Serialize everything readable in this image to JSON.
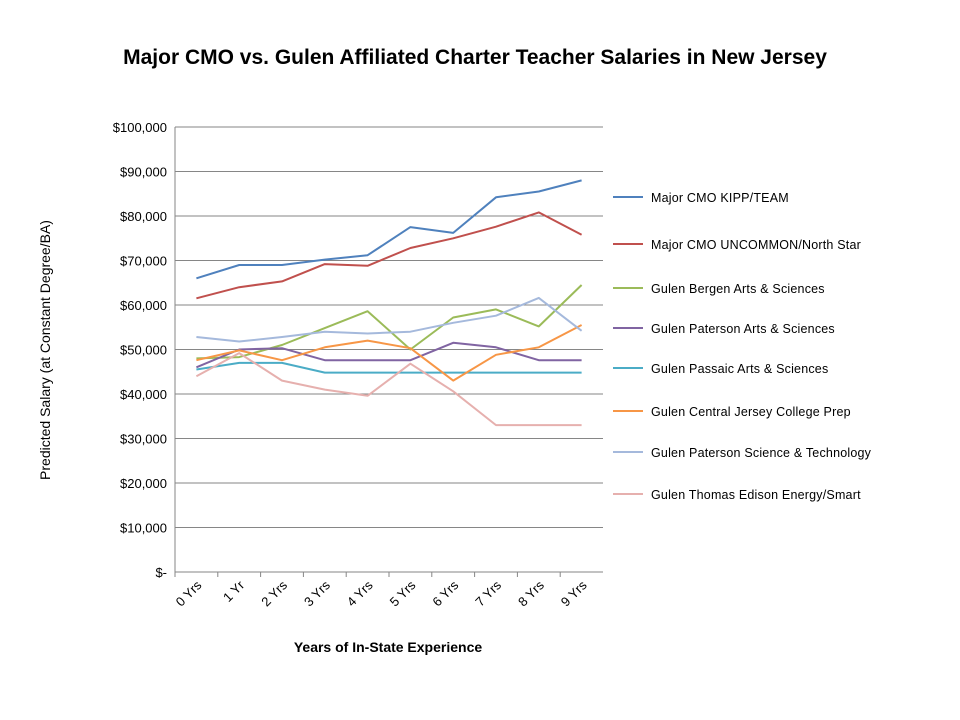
{
  "chart_data": {
    "type": "line",
    "title": "Major CMO vs. Gulen Affiliated Charter Teacher Salaries in New Jersey",
    "xlabel": "Years of In-State Experience",
    "ylabel": "Predicted Salary (at Constant Degree/BA)",
    "ylim": [
      0,
      100000
    ],
    "grid": true,
    "legend_position": "right",
    "y_ticks": [
      "$-",
      "$10,000",
      "$20,000",
      "$30,000",
      "$40,000",
      "$50,000",
      "$60,000",
      "$70,000",
      "$80,000",
      "$90,000",
      "$100,000"
    ],
    "categories": [
      "0 Yrs",
      "1 Yr",
      "2 Yrs",
      "3 Yrs",
      "4 Yrs",
      "5 Yrs",
      "6 Yrs",
      "7 Yrs",
      "8 Yrs",
      "9 Yrs"
    ],
    "series": [
      {
        "name": "Major CMO KIPP/TEAM",
        "color": "#4F81BD",
        "values": [
          66000,
          69000,
          69000,
          70200,
          71200,
          77500,
          76200,
          84200,
          85500,
          88000
        ]
      },
      {
        "name": "Major CMO UNCOMMON/North Star",
        "color": "#C0504D",
        "values": [
          61500,
          64000,
          65300,
          69200,
          68800,
          72800,
          75000,
          77600,
          80800,
          75800
        ]
      },
      {
        "name": "Gulen Bergen Arts & Sciences",
        "color": "#9BBB59",
        "values": [
          48000,
          48300,
          51000,
          54800,
          58600,
          50000,
          57200,
          59000,
          55200,
          64500
        ]
      },
      {
        "name": "Gulen Paterson Arts & Sciences",
        "color": "#8064A2",
        "values": [
          46000,
          50000,
          50300,
          47600,
          47600,
          47600,
          51500,
          50500,
          47600,
          47600
        ]
      },
      {
        "name": "Gulen Passaic Arts & Sciences",
        "color": "#4BACC6",
        "values": [
          45500,
          47000,
          47000,
          44800,
          44800,
          44800,
          44800,
          44800,
          44800,
          44800
        ]
      },
      {
        "name": "Gulen Central Jersey College Prep",
        "color": "#F79646",
        "values": [
          47600,
          49800,
          47600,
          50500,
          52000,
          50300,
          43000,
          48800,
          50500,
          55500
        ]
      },
      {
        "name": "Gulen Paterson Science & Technology",
        "color": "#A5B9DC",
        "values": [
          52800,
          51800,
          52800,
          54000,
          53600,
          54000,
          56000,
          57600,
          61600,
          54200
        ]
      },
      {
        "name": "Gulen Thomas Edison Energy/Smart",
        "color": "#E6B0AE",
        "values": [
          44000,
          49200,
          43000,
          41000,
          39600,
          46800,
          40600,
          33000,
          33000,
          33000
        ]
      }
    ]
  }
}
